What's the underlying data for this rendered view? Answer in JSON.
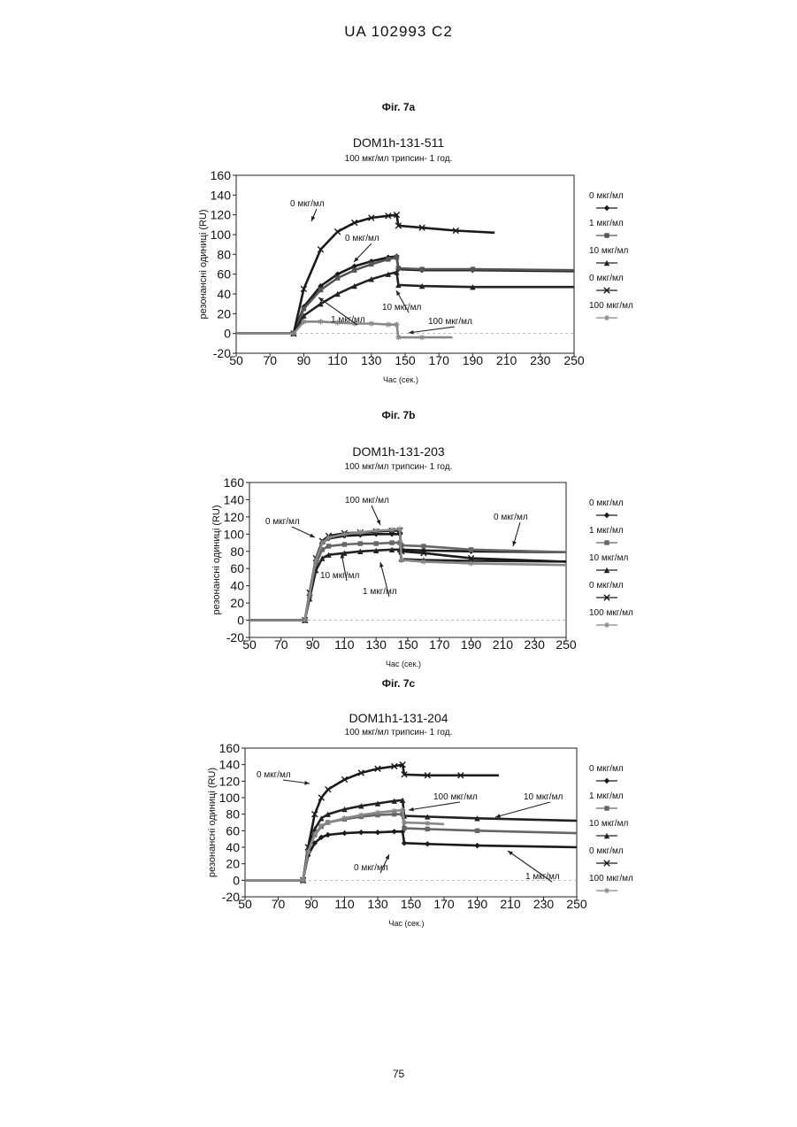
{
  "header": "UA  102993  C2",
  "page_number": "75",
  "chart_data": [
    {
      "type": "line",
      "fig_label": "Фіг. 7a",
      "title": "DOM1h-131-511",
      "subtitle": "100 мкг/мл  трипсин- 1 год.",
      "ylabel": "резонансні одиниці  (RU)",
      "xlabel": "Час (сек.)",
      "xlim": [
        50,
        250
      ],
      "ylim": [
        -20,
        160
      ],
      "xticks": [
        50,
        70,
        90,
        110,
        130,
        150,
        170,
        190,
        210,
        230,
        250
      ],
      "yticks": [
        -20,
        0,
        20,
        40,
        60,
        80,
        100,
        120,
        140,
        160
      ],
      "legend_position": "right",
      "series": [
        {
          "name": "0 мкг/мл",
          "marker": "diamond",
          "color": "#1a1a1a",
          "x": [
            50,
            84,
            90,
            100,
            110,
            120,
            130,
            140,
            145,
            146,
            160,
            190,
            250
          ],
          "y": [
            0,
            0,
            27,
            48,
            60,
            68,
            73,
            77,
            78,
            65,
            64,
            64,
            63
          ]
        },
        {
          "name": "1 мкг/мл",
          "marker": "square",
          "color": "#555555",
          "x": [
            50,
            84,
            90,
            100,
            110,
            120,
            130,
            140,
            145,
            146,
            160,
            190,
            250
          ],
          "y": [
            0,
            0,
            25,
            44,
            56,
            64,
            70,
            75,
            77,
            66,
            65,
            65,
            64
          ]
        },
        {
          "name": "10 мкг/мл",
          "marker": "triangle",
          "color": "#222222",
          "x": [
            50,
            84,
            90,
            100,
            110,
            120,
            130,
            140,
            145,
            146,
            160,
            190,
            250
          ],
          "y": [
            0,
            0,
            18,
            30,
            40,
            48,
            55,
            60,
            62,
            49,
            48,
            47,
            47
          ]
        },
        {
          "name": "0 мкг/мл",
          "marker": "x",
          "color": "#1a1a1a",
          "x": [
            50,
            84,
            90,
            100,
            110,
            120,
            130,
            140,
            145,
            146,
            160,
            180,
            203
          ],
          "y": [
            0,
            0,
            45,
            85,
            103,
            112,
            117,
            119,
            120,
            109,
            107,
            104,
            102
          ]
        },
        {
          "name": "100 мкг/мл",
          "marker": "star",
          "color": "#888888",
          "x": [
            50,
            84,
            90,
            100,
            110,
            120,
            130,
            140,
            145,
            146,
            160,
            178
          ],
          "y": [
            0,
            0,
            12,
            12,
            11,
            10,
            10,
            9,
            9,
            -4,
            -4,
            -4
          ]
        }
      ],
      "annotations": [
        "0 мкг/мл",
        "0 мкг/мл",
        "10 мкг/мл",
        "1 мкг/мл",
        "100 мкг/мл"
      ]
    },
    {
      "type": "line",
      "fig_label": "Фіг. 7b",
      "title": "DOM1h-131-203",
      "subtitle": "100 мкг/мл  трипсин- 1 год.",
      "ylabel": "резонансні одиниці  (RU)",
      "xlabel": "Час (сек.)",
      "xlim": [
        50,
        250
      ],
      "ylim": [
        -20,
        160
      ],
      "xticks": [
        50,
        70,
        90,
        110,
        130,
        150,
        170,
        190,
        210,
        230,
        250
      ],
      "yticks": [
        -20,
        0,
        20,
        40,
        60,
        80,
        100,
        120,
        140,
        160
      ],
      "legend_position": "right",
      "series": [
        {
          "name": "0 мкг/мл",
          "marker": "diamond",
          "color": "#1a1a1a",
          "x": [
            50,
            85,
            88,
            92,
            96,
            100,
            110,
            120,
            130,
            140,
            145,
            146,
            160,
            190,
            250
          ],
          "y": [
            0,
            0,
            30,
            70,
            90,
            95,
            98,
            99,
            100,
            100,
            100,
            82,
            81,
            80,
            79
          ]
        },
        {
          "name": "1 мкг/мл",
          "marker": "square",
          "color": "#666666",
          "x": [
            50,
            85,
            88,
            92,
            96,
            100,
            110,
            120,
            130,
            140,
            145,
            146,
            160,
            190,
            250
          ],
          "y": [
            0,
            0,
            28,
            65,
            82,
            86,
            88,
            89,
            89,
            90,
            90,
            87,
            86,
            82,
            79
          ]
        },
        {
          "name": "10 мкг/мл",
          "marker": "triangle",
          "color": "#222222",
          "x": [
            50,
            85,
            88,
            92,
            96,
            100,
            110,
            120,
            130,
            140,
            145,
            146,
            160,
            190,
            250
          ],
          "y": [
            0,
            0,
            25,
            58,
            72,
            76,
            78,
            80,
            81,
            82,
            82,
            71,
            70,
            69,
            68
          ]
        },
        {
          "name": "0 мкг/мл",
          "marker": "x",
          "color": "#1a1a1a",
          "x": [
            50,
            85,
            88,
            92,
            96,
            100,
            110,
            120,
            130,
            140,
            145,
            146,
            160,
            190,
            250
          ],
          "y": [
            0,
            0,
            32,
            72,
            92,
            98,
            101,
            102,
            103,
            104,
            104,
            80,
            78,
            72,
            68
          ]
        },
        {
          "name": "100 мкг/мл",
          "marker": "star",
          "color": "#888888",
          "x": [
            50,
            85,
            88,
            92,
            96,
            100,
            110,
            120,
            130,
            140,
            145,
            146,
            160,
            190,
            250
          ],
          "y": [
            0,
            0,
            30,
            70,
            90,
            96,
            100,
            102,
            104,
            105,
            106,
            70,
            68,
            66,
            64
          ]
        }
      ],
      "annotations": [
        "100 мкг/мл",
        "0 мкг/мл",
        "0 мкг/мл",
        "10 мкг/мл",
        "1 мкг/мл"
      ]
    },
    {
      "type": "line",
      "fig_label": "Фіг. 7c",
      "title": "DOM1h1-131-204",
      "subtitle": "100 мкг/мл  трипсин- 1 год.",
      "ylabel": "резонансні одиниці  (RU)",
      "xlabel": "Час (сек.)",
      "xlim": [
        50,
        250
      ],
      "ylim": [
        -20,
        160
      ],
      "xticks": [
        50,
        70,
        90,
        110,
        130,
        150,
        170,
        190,
        210,
        230,
        250
      ],
      "yticks": [
        -20,
        0,
        20,
        40,
        60,
        80,
        100,
        120,
        140,
        160
      ],
      "legend_position": "right",
      "series": [
        {
          "name": "0 мкг/мл",
          "marker": "diamond",
          "color": "#1a1a1a",
          "x": [
            50,
            85,
            88,
            92,
            96,
            100,
            110,
            120,
            130,
            140,
            145,
            146,
            160,
            190,
            250
          ],
          "y": [
            0,
            0,
            30,
            45,
            52,
            55,
            57,
            58,
            58,
            59,
            59,
            45,
            44,
            42,
            40
          ]
        },
        {
          "name": "1 мкг/мл",
          "marker": "square",
          "color": "#666666",
          "x": [
            50,
            85,
            88,
            92,
            96,
            100,
            110,
            120,
            130,
            140,
            145,
            146,
            160,
            190,
            250
          ],
          "y": [
            0,
            0,
            35,
            55,
            65,
            70,
            74,
            77,
            79,
            80,
            80,
            63,
            62,
            60,
            57
          ]
        },
        {
          "name": "10 мкг/мл",
          "marker": "triangle",
          "color": "#222222",
          "x": [
            50,
            85,
            88,
            92,
            96,
            100,
            110,
            120,
            130,
            140,
            145,
            146,
            160,
            190,
            250
          ],
          "y": [
            0,
            0,
            40,
            62,
            75,
            80,
            86,
            90,
            93,
            96,
            97,
            78,
            77,
            75,
            72
          ]
        },
        {
          "name": "0 мкг/мл",
          "marker": "x",
          "color": "#1a1a1a",
          "x": [
            50,
            85,
            88,
            92,
            96,
            100,
            110,
            120,
            130,
            140,
            145,
            146,
            160,
            180,
            203
          ],
          "y": [
            0,
            0,
            40,
            80,
            100,
            110,
            122,
            130,
            135,
            138,
            140,
            128,
            127,
            127,
            127
          ]
        },
        {
          "name": "100 мкг/мл",
          "marker": "star",
          "color": "#888888",
          "x": [
            50,
            85,
            88,
            92,
            96,
            100,
            110,
            120,
            130,
            140,
            145,
            146,
            160,
            170
          ],
          "y": [
            0,
            0,
            35,
            56,
            66,
            70,
            75,
            79,
            82,
            84,
            85,
            70,
            69,
            68
          ]
        }
      ],
      "annotations": [
        "0 мкг/мл",
        "100 мкг/мл",
        "10 мкг/мл",
        "0 мкг/мл",
        "1 мкг/мл"
      ]
    }
  ]
}
